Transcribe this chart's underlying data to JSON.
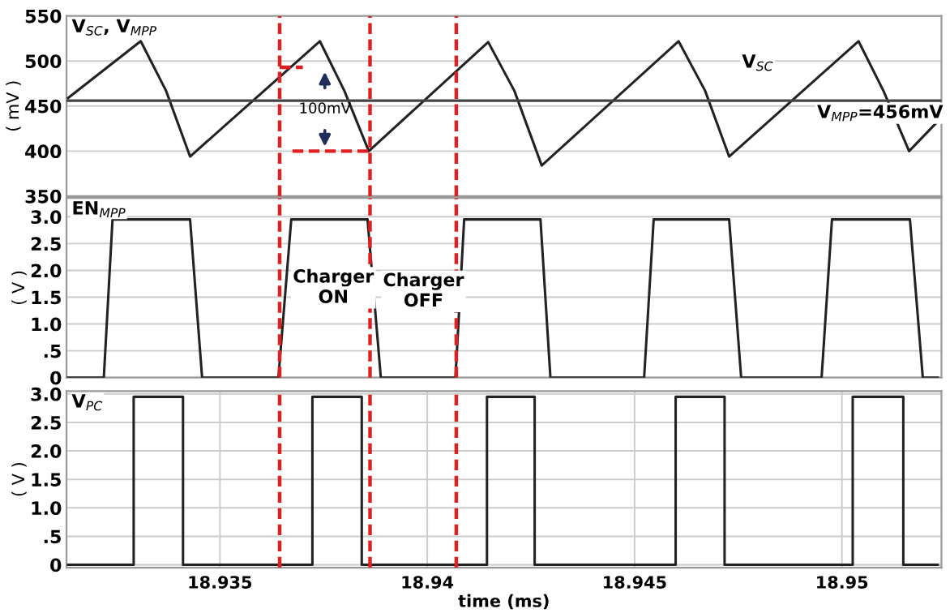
{
  "chart_data": [
    {
      "type": "line",
      "title": "V$_{SC}$, V$_{MPP}$",
      "ylabel": "( mV )",
      "xlim": [
        18.9313,
        18.9524
      ],
      "ylim": [
        350,
        550
      ],
      "yticks": [
        350,
        400,
        450,
        500,
        550
      ],
      "tick_labels": "y",
      "grid": true,
      "line_style": "solid",
      "series": [
        {
          "color": "#222222",
          "x": [
            18.93134,
            18.93309,
            18.9337,
            18.93428,
            18.93741,
            18.938,
            18.93859,
            18.94147,
            18.9421,
            18.94276,
            18.94606,
            18.9467,
            18.94728,
            18.9504,
            18.951,
            18.95162,
            18.95231
          ],
          "values": [
            459,
            522,
            467,
            394,
            522,
            467,
            400,
            521,
            467,
            384,
            522,
            467,
            394,
            522,
            467,
            400,
            433
          ]
        },
        {
          "color": "#444444",
          "x": [
            18.9313,
            18.9524
          ],
          "values": [
            456,
            456
          ]
        },
        {
          "color": "#e02020",
          "line_style": "dashed",
          "x": [
            18.93644,
            18.937
          ],
          "values": [
            493,
            493
          ]
        },
        {
          "color": "#e02020",
          "line_style": "dashed",
          "x": [
            18.93675,
            18.93862
          ],
          "values": [
            400,
            400
          ]
        }
      ],
      "annotations": [
        "V$_{SC}$",
        "V$_{MPP}$=456mV",
        "100mV"
      ],
      "ref_lines": [
        {
          "axis": "x",
          "value": 18.93644,
          "color": "#e02020",
          "line_style": "dashed"
        },
        {
          "axis": "x",
          "value": 18.93862,
          "color": "#e02020",
          "line_style": "dashed"
        },
        {
          "axis": "x",
          "value": 18.9407,
          "color": "#e02020",
          "line_style": "dashed"
        }
      ]
    },
    {
      "type": "line",
      "title": "EN$_{MPP}$",
      "ylabel": "( V )",
      "xlim": [
        18.9313,
        18.9524
      ],
      "ylim": [
        0,
        3.35
      ],
      "yticks": [
        0,
        {
          "value": 0.5,
          "label": ".5"
        },
        {
          "value": 1,
          "label": "1.0"
        },
        1.5,
        {
          "value": 2,
          "label": "2.0"
        },
        2.5,
        {
          "value": 3,
          "label": "3.0"
        }
      ],
      "tick_labels": "y",
      "grid": true,
      "line_style": "solid",
      "series": [
        {
          "color": "#222222",
          "x": [
            18.93134,
            18.9322,
            18.93241,
            18.93428,
            18.93457,
            18.93641,
            18.93672,
            18.93856,
            18.93888,
            18.94068,
            18.94089,
            18.94273,
            18.94297,
            18.94523,
            18.94546,
            18.94728,
            18.94757,
            18.94951,
            18.94976,
            18.95164,
            18.95195,
            18.95231
          ],
          "values": [
            0,
            0,
            2.95,
            2.95,
            0,
            0,
            2.95,
            2.95,
            0,
            0,
            2.95,
            2.95,
            0,
            0,
            2.95,
            2.95,
            0,
            0,
            2.95,
            2.95,
            0,
            0
          ]
        }
      ],
      "annotations": [
        "Charger\nON",
        "Charger\nOFF"
      ],
      "ref_lines": [
        {
          "axis": "x",
          "value": 18.93644,
          "color": "#e02020",
          "line_style": "dashed"
        },
        {
          "axis": "x",
          "value": 18.93862,
          "color": "#e02020",
          "line_style": "dashed"
        },
        {
          "axis": "x",
          "value": 18.9407,
          "color": "#e02020",
          "line_style": "dashed"
        }
      ]
    },
    {
      "type": "line",
      "title": "V$_{PC}$",
      "ylabel": "( V )",
      "xlabel": "time (ms)",
      "xlim": [
        18.9313,
        18.9524
      ],
      "ylim": [
        -0.05,
        3.05
      ],
      "xticks": [
        18.935,
        18.94,
        18.945,
        18.95
      ],
      "yticks": [
        0,
        {
          "value": 0.5,
          "label": ".5"
        },
        {
          "value": 1,
          "label": "1.0"
        },
        1.5,
        {
          "value": 2,
          "label": "2.0"
        },
        2.5,
        {
          "value": 3,
          "label": "3.0"
        }
      ],
      "grid": true,
      "line_style": "solid",
      "series": [
        {
          "color": "#222222",
          "x": [
            18.93134,
            18.93292,
            18.93292,
            18.93411,
            18.93411,
            18.93723,
            18.93723,
            18.93842,
            18.93842,
            18.94144,
            18.94144,
            18.94259,
            18.94259,
            18.94599,
            18.94599,
            18.94717,
            18.94717,
            18.95026,
            18.95026,
            18.95148,
            18.95148,
            18.95231
          ],
          "values": [
            0,
            0,
            2.95,
            2.95,
            0,
            0,
            2.95,
            2.95,
            0,
            0,
            2.95,
            2.95,
            0,
            0,
            2.95,
            2.95,
            0,
            0,
            2.95,
            2.95,
            0,
            0
          ]
        }
      ],
      "ref_lines": [
        {
          "axis": "x",
          "value": 18.93644,
          "color": "#e02020",
          "line_style": "dashed"
        },
        {
          "axis": "x",
          "value": 18.93862,
          "color": "#e02020",
          "line_style": "dashed"
        },
        {
          "axis": "x",
          "value": 18.9407,
          "color": "#e02020",
          "line_style": "dashed"
        }
      ]
    }
  ]
}
